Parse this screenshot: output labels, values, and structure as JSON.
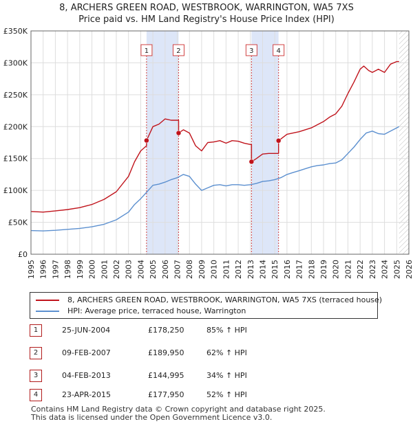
{
  "title_line1": "8, ARCHERS GREEN ROAD, WESTBROOK, WARRINGTON, WA5 7XS",
  "title_line2": "Price paid vs. HM Land Registry's House Price Index (HPI)",
  "legend": {
    "property": "8, ARCHERS GREEN ROAD, WESTBROOK, WARRINGTON, WA5 7XS (terraced house)",
    "hpi": "HPI: Average price, terraced house, Warrington"
  },
  "colors": {
    "property": "#c0131b",
    "hpi": "#5b8fcf",
    "shade": "#dde6f8",
    "marker_line": "#d04040",
    "grid": "#dddddd"
  },
  "sales": [
    {
      "num": "1",
      "date": "25-JUN-2004",
      "price": "£178,250",
      "pct": "85% ↑ HPI"
    },
    {
      "num": "2",
      "date": "09-FEB-2007",
      "price": "£189,950",
      "pct": "62% ↑ HPI"
    },
    {
      "num": "3",
      "date": "04-FEB-2013",
      "price": "£144,995",
      "pct": "34% ↑ HPI"
    },
    {
      "num": "4",
      "date": "23-APR-2015",
      "price": "£177,950",
      "pct": "52% ↑ HPI"
    }
  ],
  "footer_line1": "Contains HM Land Registry data © Crown copyright and database right 2025.",
  "footer_line2": "This data is licensed under the Open Government Licence v3.0.",
  "chart_data": {
    "type": "line",
    "title": "8, ARCHERS GREEN ROAD, WESTBROOK, WARRINGTON, WA5 7XS — Price paid vs. HM Land Registry's House Price Index (HPI)",
    "xlim": [
      1995,
      2026
    ],
    "ylim": [
      0,
      350000
    ],
    "x_ticks": [
      1995,
      1996,
      1997,
      1998,
      1999,
      2000,
      2001,
      2002,
      2003,
      2004,
      2005,
      2006,
      2007,
      2008,
      2009,
      2010,
      2011,
      2012,
      2013,
      2014,
      2015,
      2016,
      2017,
      2018,
      2019,
      2020,
      2021,
      2022,
      2023,
      2024,
      2025,
      2026
    ],
    "y_ticks": [
      0,
      50000,
      100000,
      150000,
      200000,
      250000,
      300000,
      350000
    ],
    "y_tick_labels": [
      "£0",
      "£50K",
      "£100K",
      "£150K",
      "£200K",
      "£250K",
      "£300K",
      "£350K"
    ],
    "shaded_periods": [
      [
        2004.48,
        2007.11
      ],
      [
        2013.09,
        2015.31
      ]
    ],
    "future_hatch_from": 2025.2,
    "sale_markers": [
      {
        "label": "1",
        "x": 2004.48,
        "y": 178250
      },
      {
        "label": "2",
        "x": 2007.11,
        "y": 189950
      },
      {
        "label": "3",
        "x": 2013.09,
        "y": 144995
      },
      {
        "label": "4",
        "x": 2015.31,
        "y": 177950
      }
    ],
    "series": [
      {
        "name": "8, ARCHERS GREEN ROAD, WESTBROOK, WARRINGTON, WA5 7XS (terraced house)",
        "x": [
          1995,
          1996,
          1997,
          1998,
          1999,
          2000,
          2001,
          2002,
          2003,
          2003.5,
          2004,
          2004.48,
          2004.48,
          2005,
          2005.5,
          2006,
          2006.5,
          2007.0,
          2007.11,
          2007.11,
          2007.5,
          2008,
          2008.5,
          2009,
          2009.5,
          2010,
          2010.5,
          2011,
          2011.5,
          2012,
          2012.5,
          2013.0,
          2013.09,
          2013.09,
          2013.5,
          2014,
          2014.5,
          2015.0,
          2015.31,
          2015.31,
          2016,
          2017,
          2018,
          2019,
          2019.5,
          2020,
          2020.5,
          2021,
          2021.5,
          2022,
          2022.3,
          2022.7,
          2023,
          2023.5,
          2024,
          2024.5,
          2025,
          2025.2
        ],
        "values": [
          67000,
          66000,
          68000,
          70000,
          73000,
          78000,
          86000,
          98000,
          122000,
          145000,
          162000,
          170000,
          178250,
          200000,
          204000,
          212000,
          210000,
          210000,
          210000,
          189950,
          195000,
          190000,
          170000,
          162000,
          175000,
          176000,
          178000,
          174000,
          178000,
          177000,
          174000,
          172000,
          172000,
          144995,
          150000,
          157000,
          158000,
          158000,
          158000,
          177950,
          188000,
          192000,
          198000,
          208000,
          215000,
          220000,
          232000,
          252000,
          270000,
          290000,
          295000,
          288000,
          285000,
          290000,
          285000,
          298000,
          302000,
          302000
        ]
      },
      {
        "name": "HPI: Average price, terraced house, Warrington",
        "x": [
          1995,
          1996,
          1997,
          1998,
          1999,
          2000,
          2001,
          2002,
          2003,
          2003.5,
          2004,
          2004.48,
          2005,
          2005.5,
          2006,
          2006.5,
          2007,
          2007.5,
          2008,
          2008.5,
          2009,
          2009.5,
          2010,
          2010.5,
          2011,
          2011.5,
          2012,
          2012.5,
          2013,
          2013.5,
          2014,
          2014.5,
          2015,
          2015.5,
          2016,
          2016.5,
          2017,
          2017.5,
          2018,
          2018.5,
          2019,
          2019.5,
          2020,
          2020.5,
          2021,
          2021.5,
          2022,
          2022.5,
          2023,
          2023.5,
          2024,
          2024.5,
          2025,
          2025.2
        ],
        "values": [
          37000,
          36500,
          37500,
          39000,
          40500,
          43000,
          47000,
          54000,
          66000,
          78000,
          87000,
          97000,
          108000,
          110000,
          113000,
          117000,
          120000,
          125000,
          122000,
          110000,
          100000,
          104000,
          108000,
          109000,
          107000,
          109000,
          109000,
          108000,
          109000,
          111000,
          114000,
          115000,
          117000,
          120000,
          125000,
          128000,
          131000,
          134000,
          137000,
          139000,
          140000,
          142000,
          143000,
          148000,
          158000,
          168000,
          180000,
          190000,
          193000,
          189000,
          188000,
          193000,
          198000,
          200000
        ]
      }
    ]
  }
}
